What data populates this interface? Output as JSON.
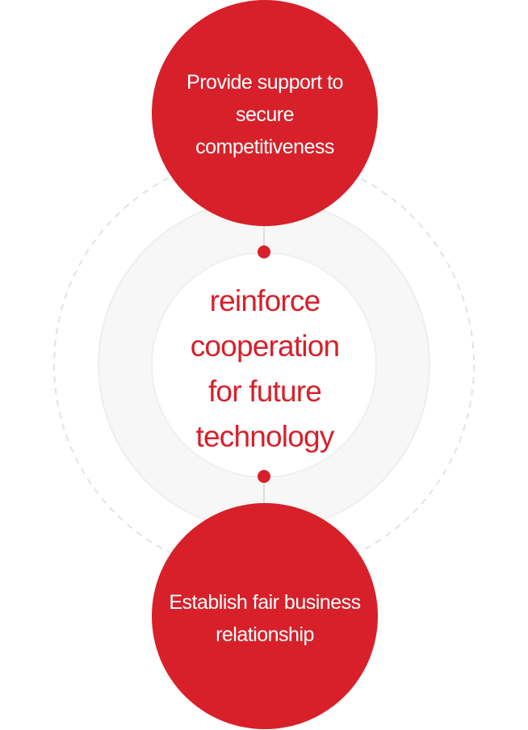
{
  "diagram": {
    "top_goal": {
      "text": "Provide support to\nsecure\ncompetitiveness"
    },
    "center_goal": {
      "text": "reinforce\ncooperation\nfor future\ntechnology"
    },
    "bottom_goal": {
      "text": "Establish fair business\nrelationship"
    }
  },
  "colors": {
    "accent": "#d7202a",
    "ring": "#f2f2f2",
    "dashed_orbit": "#e3e3e3",
    "text_on_accent": "#ffffff"
  }
}
